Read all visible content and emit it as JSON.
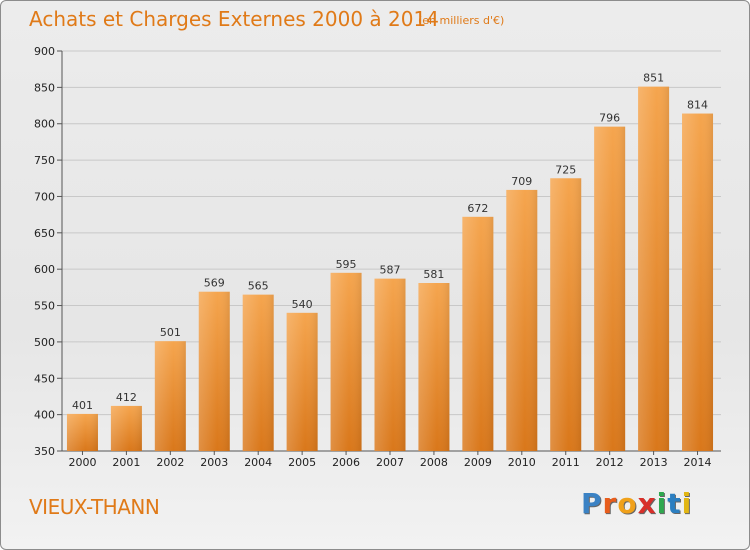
{
  "header": {
    "title": "Achats et Charges Externes 2000 à 2014",
    "subtitle": "(en milliers d'€)"
  },
  "footer": {
    "location": "VIEUX-THANN",
    "logo_text": "Proxiti"
  },
  "colors": {
    "title": "#e07a18",
    "bar_top": "#f5a54e",
    "bar_bottom": "#d9771a",
    "grid": "#c8c8c8"
  },
  "chart_data": {
    "type": "bar",
    "title": "Achats et Charges Externes 2000 à 2014",
    "subtitle": "(en milliers d'€)",
    "xlabel": "",
    "ylabel": "",
    "categories": [
      "2000",
      "2001",
      "2002",
      "2003",
      "2004",
      "2005",
      "2006",
      "2007",
      "2008",
      "2009",
      "2010",
      "2011",
      "2012",
      "2013",
      "2014"
    ],
    "values": [
      401,
      412,
      501,
      569,
      565,
      540,
      595,
      587,
      581,
      672,
      709,
      725,
      796,
      851,
      814
    ],
    "ylim": [
      350,
      900
    ],
    "yticks": [
      350,
      400,
      450,
      500,
      550,
      600,
      650,
      700,
      750,
      800,
      850,
      900
    ],
    "grid": true,
    "data_labels": true
  }
}
